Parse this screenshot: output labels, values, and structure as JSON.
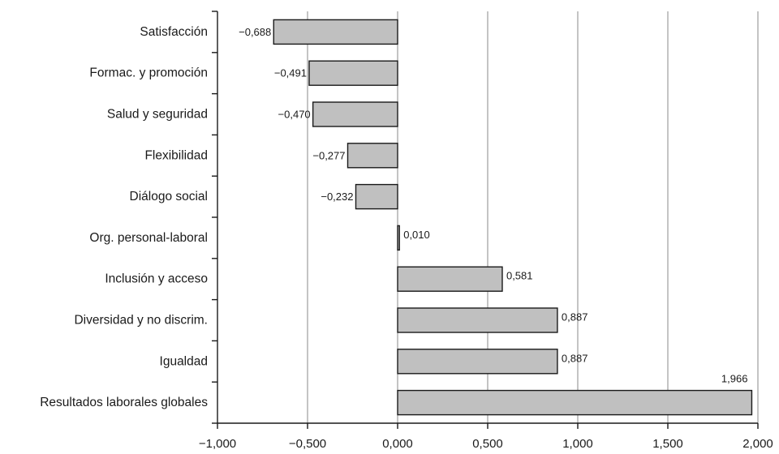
{
  "chart_data": {
    "type": "bar",
    "orientation": "horizontal",
    "categories": [
      "Satisfacción",
      "Formac. y promoción",
      "Salud y seguridad",
      "Flexibilidad",
      "Diálogo social",
      "Org. personal-laboral",
      "Inclusión y acceso",
      "Diversidad y no discrim.",
      "Igualdad",
      "Resultados laborales globales"
    ],
    "values": [
      -0.688,
      -0.491,
      -0.47,
      -0.277,
      -0.232,
      0.01,
      0.581,
      0.887,
      0.887,
      1.966
    ],
    "value_labels": [
      "−0,688",
      "−0,491",
      "−0,470",
      "−0,277",
      "−0,232",
      "0,010",
      "0,581",
      "0,887",
      "0,887",
      "1,966"
    ],
    "xlim": [
      -1.0,
      2.0
    ],
    "ticks": [
      -1.0,
      -0.5,
      0.0,
      0.5,
      1.0,
      1.5,
      2.0
    ],
    "tick_labels": [
      "−1,000",
      "−0,500",
      "0,000",
      "0,500",
      "1,000",
      "1,500",
      "2,000"
    ],
    "grid": "vertical",
    "bar_color": "#c0c0c0",
    "bar_edge_color": "#1a1a1a",
    "grid_color": "#8a8a8a",
    "title": "",
    "xlabel": "",
    "ylabel": ""
  }
}
